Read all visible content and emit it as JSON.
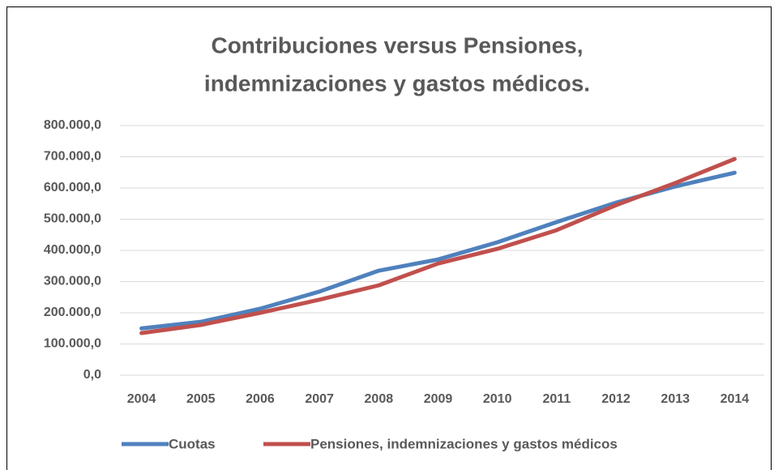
{
  "chart_data": {
    "type": "line",
    "title": [
      "Contribuciones versus Pensiones,",
      "indemnizaciones y gastos médicos."
    ],
    "categories": [
      "2004",
      "2005",
      "2006",
      "2007",
      "2008",
      "2009",
      "2010",
      "2011",
      "2012",
      "2013",
      "2014"
    ],
    "series": [
      {
        "name": "Cuotas",
        "color": "#4f81bd",
        "values": [
          150000,
          171000,
          213000,
          268000,
          335000,
          371000,
          426000,
          491000,
          553000,
          605000,
          649000
        ]
      },
      {
        "name": "Pensiones, indemnizaciones y gastos médicos",
        "color": "#c0504d",
        "values": [
          135000,
          161000,
          200000,
          242000,
          288000,
          358000,
          405000,
          465000,
          545000,
          616000,
          693000
        ]
      }
    ],
    "ylim": [
      0,
      800000
    ],
    "yticks": [
      {
        "value": 0,
        "label": "0,0"
      },
      {
        "value": 100000,
        "label": "100.000,0"
      },
      {
        "value": 200000,
        "label": "200.000,0"
      },
      {
        "value": 300000,
        "label": "300.000,0"
      },
      {
        "value": 400000,
        "label": "400.000,0"
      },
      {
        "value": 500000,
        "label": "500.000,0"
      },
      {
        "value": 600000,
        "label": "600.000,0"
      },
      {
        "value": 700000,
        "label": "700.000,0"
      },
      {
        "value": 800000,
        "label": "800.000,0"
      }
    ],
    "grid": true,
    "legend": "bottom"
  }
}
